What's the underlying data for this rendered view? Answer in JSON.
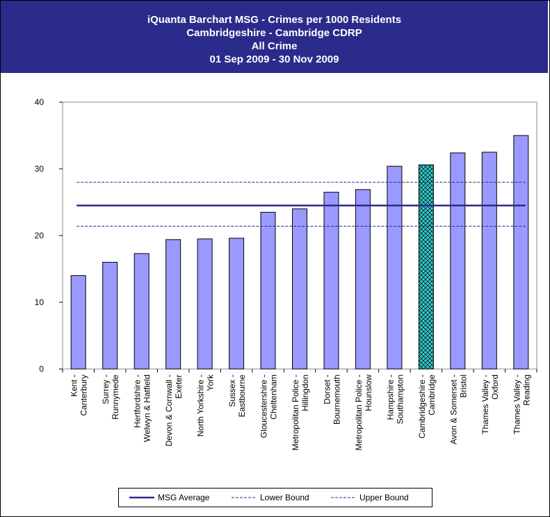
{
  "title": {
    "line1": "iQuanta Barchart MSG - Crimes per 1000 Residents",
    "line2": "Cambridgeshire - Cambridge CDRP",
    "line3": "All Crime",
    "line4": "01 Sep 2009 - 30 Nov 2009"
  },
  "colors": {
    "banner": "#2b2b8c",
    "bar": "#9999ff",
    "highlight": "#33cccc",
    "line": "#2b2b8c"
  },
  "chart_data": {
    "type": "bar",
    "categories": [
      [
        "Kent -",
        "Canterbury"
      ],
      [
        "Surrey -",
        "Runnymede"
      ],
      [
        "Hertfordshire -",
        "Welwyn & Hatfield"
      ],
      [
        "Devon & Cornwall -",
        "Exeter"
      ],
      [
        "North Yorkshire -",
        "York"
      ],
      [
        "Sussex -",
        "Eastbourne"
      ],
      [
        "Gloucestershire -",
        "Cheltenham"
      ],
      [
        "Metropolitan Police -",
        "Hillingdon"
      ],
      [
        "Dorset -",
        "Bournemouth"
      ],
      [
        "Metropolitan Police -",
        "Hounslow"
      ],
      [
        "Hampshire -",
        "Southampton"
      ],
      [
        "Cambridgeshire -",
        "Cambridge"
      ],
      [
        "Avon & Somerset -",
        "Bristol"
      ],
      [
        "Thames Valley -",
        "Oxford"
      ],
      [
        "Thames Valley -",
        "Reading"
      ]
    ],
    "values": [
      14.0,
      16.0,
      17.3,
      19.4,
      19.5,
      19.6,
      23.5,
      24.0,
      26.5,
      26.9,
      30.4,
      30.6,
      32.4,
      32.5,
      35.0
    ],
    "highlight_index": 11,
    "ylim": [
      0,
      40
    ],
    "yticks": [
      "0",
      "10",
      "20",
      "30",
      "40"
    ],
    "reference_lines": [
      {
        "name": "MSG Average",
        "value": 24.5,
        "style": "solid"
      },
      {
        "name": "Lower Bound",
        "value": 21.4,
        "style": "dashed"
      },
      {
        "name": "Upper Bound",
        "value": 28.0,
        "style": "dashed"
      }
    ],
    "grid": false,
    "legend_position": "bottom"
  }
}
